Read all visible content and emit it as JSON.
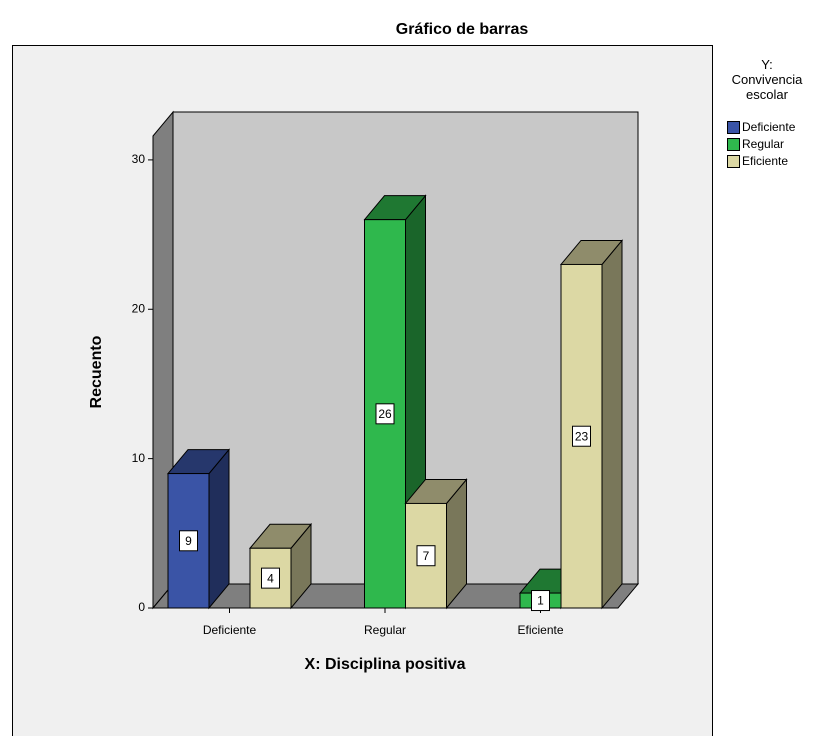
{
  "chart_data": {
    "type": "bar",
    "title": "Gráfico de barras",
    "x_label": "X: Disciplina positiva",
    "y_label": "Recuento",
    "legend_title": "Y: Convivencia escolar",
    "categories": [
      "Deficiente",
      "Regular",
      "Eficiente"
    ],
    "series": [
      {
        "name": "Deficiente",
        "color": "#3a54a6",
        "values": [
          9,
          null,
          null
        ]
      },
      {
        "name": "Regular",
        "color": "#2fb84d",
        "values": [
          null,
          26,
          1
        ]
      },
      {
        "name": "Eficiente",
        "color": "#dcd8a4",
        "values": [
          4,
          7,
          23
        ]
      }
    ],
    "ylim": [
      0,
      31.6
    ],
    "yticks": [
      0,
      10,
      20,
      30
    ],
    "legend": "right",
    "grid": false
  }
}
